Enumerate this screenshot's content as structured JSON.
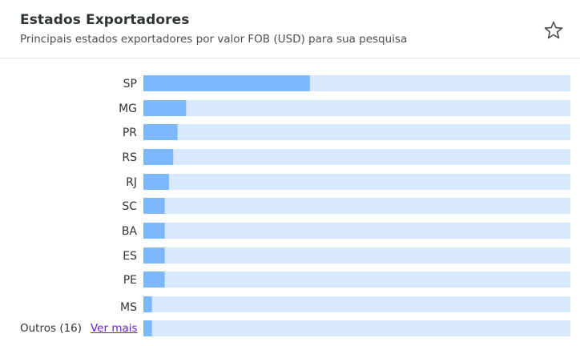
{
  "header": {
    "title": "Estados Exportadores",
    "subtitle": "Principais estados exportadores por valor FOB (USD) para sua pesquisa",
    "star_icon": "star-icon"
  },
  "footer": {
    "others_label": "Outros (16)",
    "see_more_link": "Ver mais"
  },
  "colors": {
    "bar": "#7db8ff",
    "track": "#d9e9fd"
  },
  "chart_data": {
    "type": "bar",
    "orientation": "horizontal",
    "categories": [
      "SP",
      "MG",
      "PR",
      "RS",
      "RJ",
      "SC",
      "BA",
      "ES",
      "PE",
      "MS",
      ""
    ],
    "values": [
      0.39,
      0.1,
      0.08,
      0.07,
      0.06,
      0.05,
      0.05,
      0.05,
      0.05,
      0.02,
      0.02
    ],
    "xlim": [
      0,
      1
    ],
    "title": "",
    "xlabel": "",
    "ylabel": ""
  }
}
